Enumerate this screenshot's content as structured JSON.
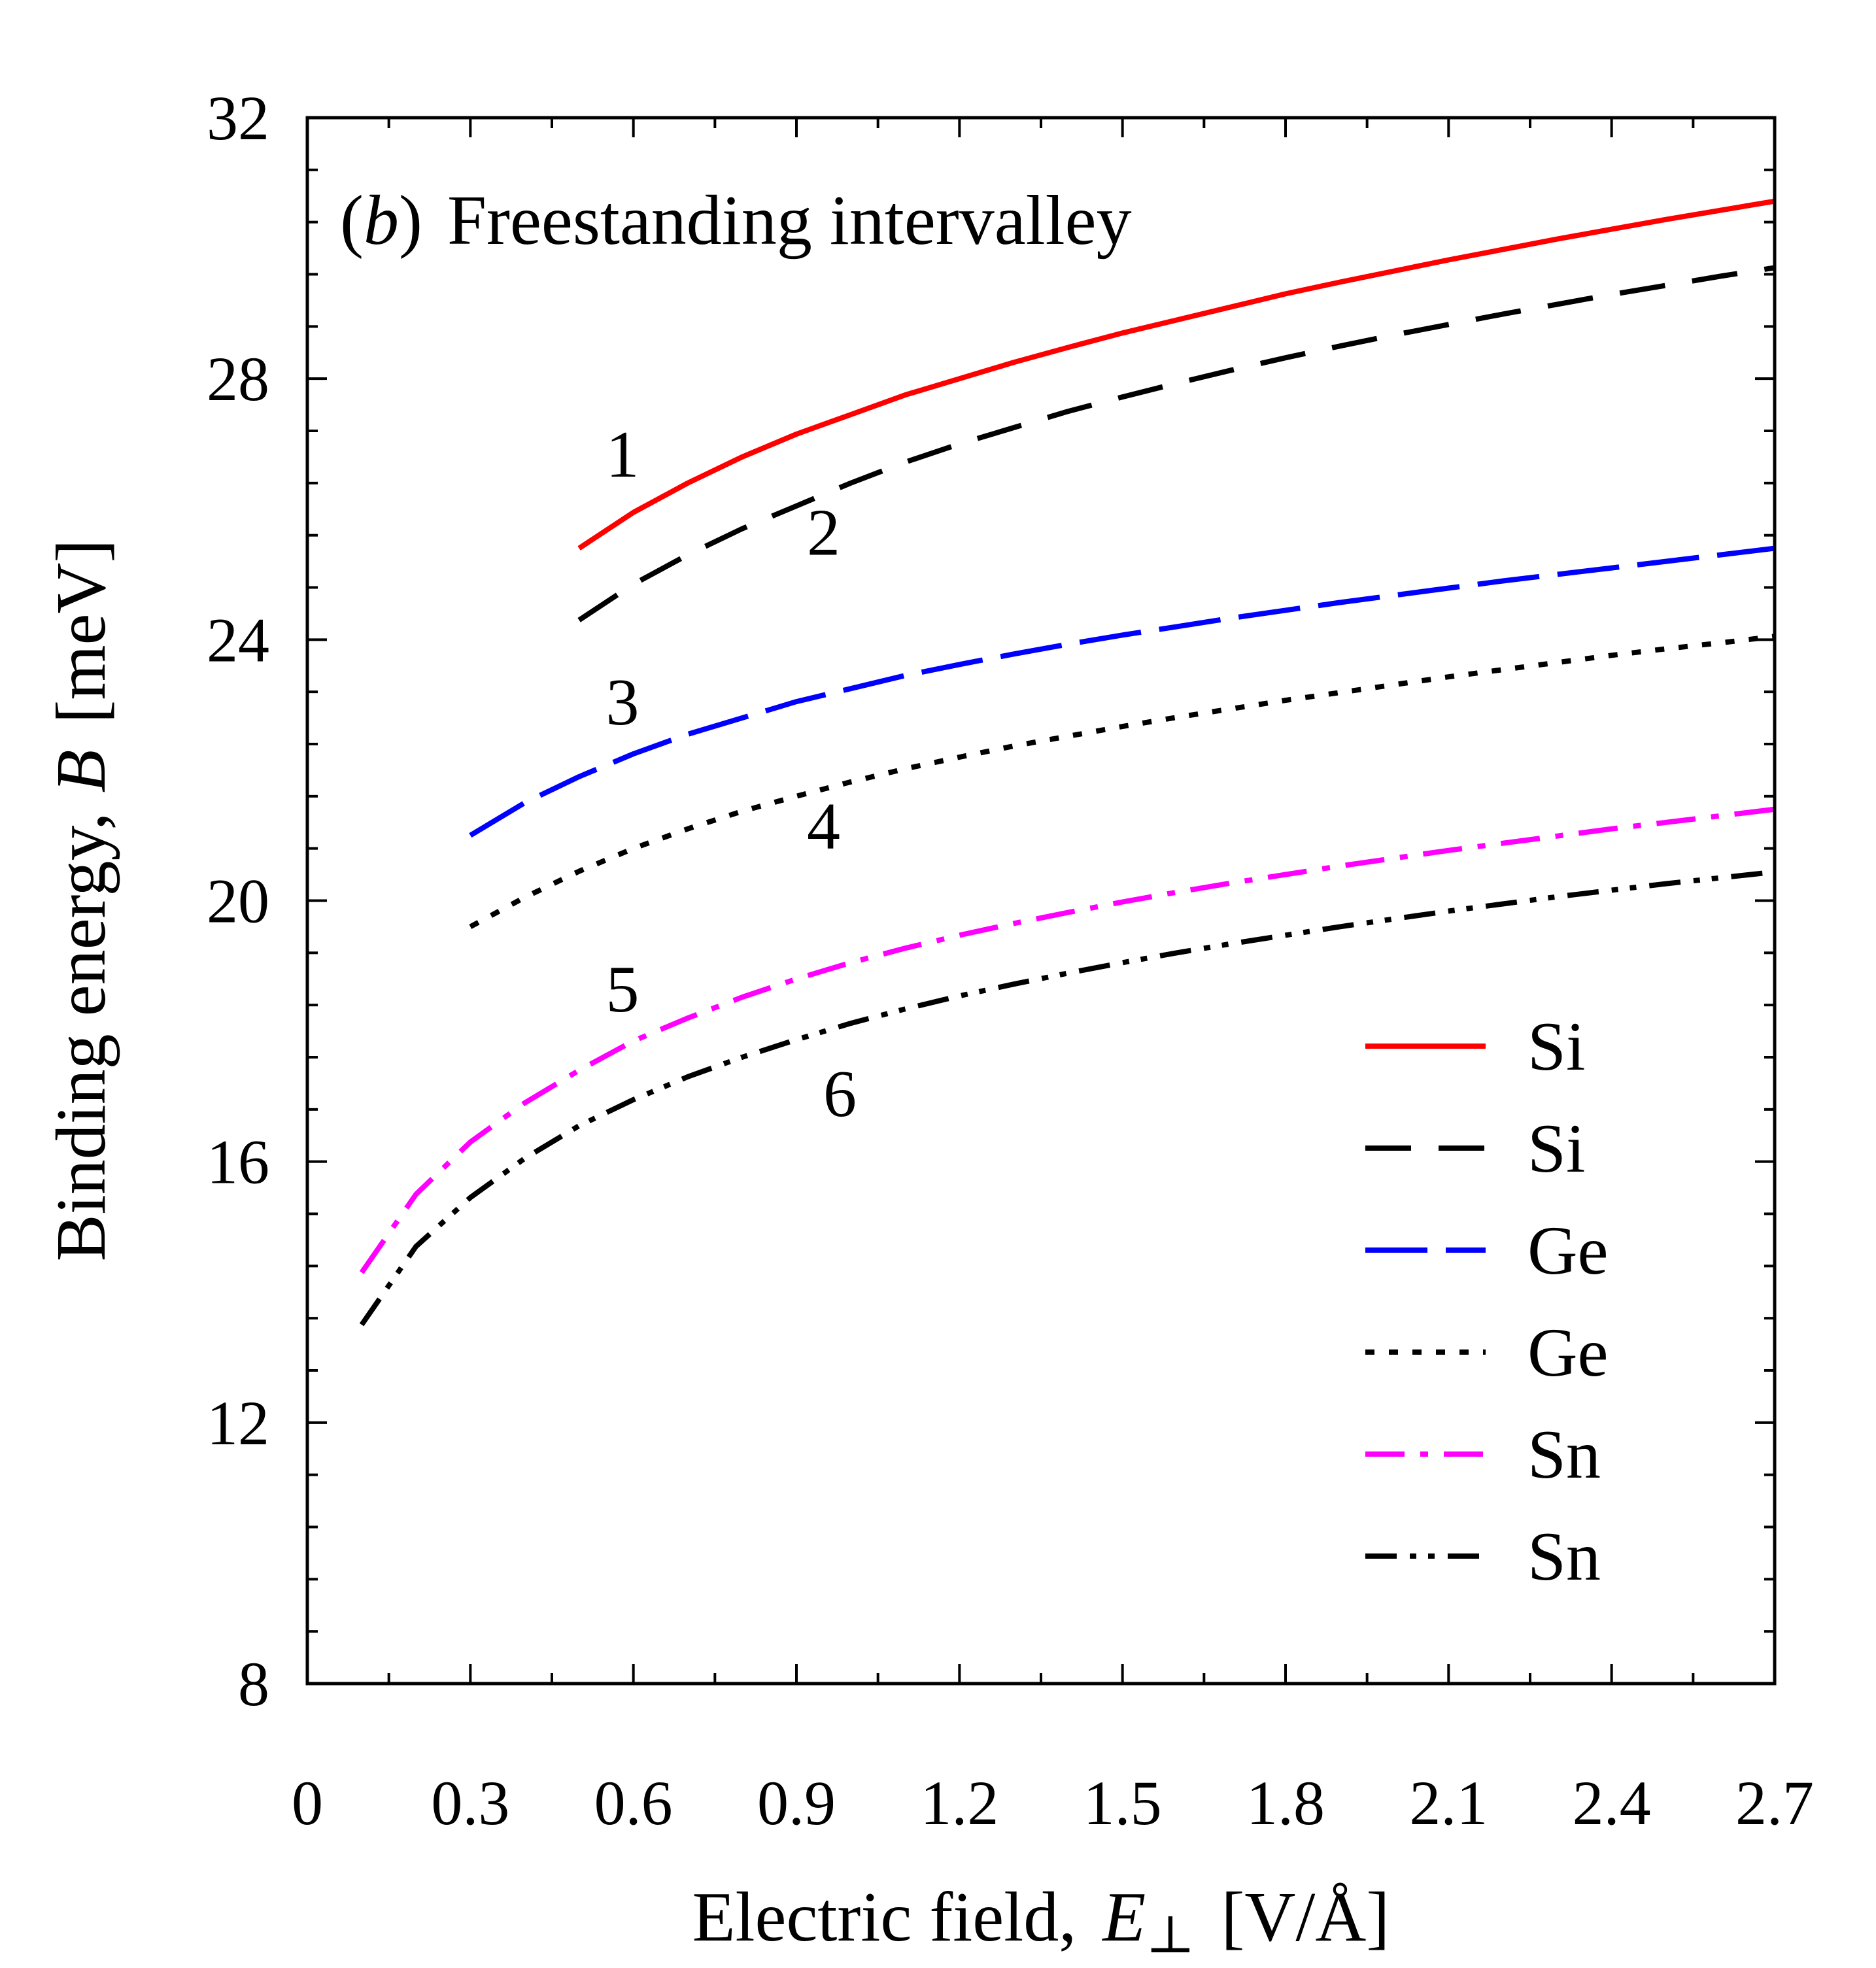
{
  "chart_data": {
    "type": "line",
    "panel": "b",
    "title": "Freestanding intervalley",
    "xlabel": "Electric field,",
    "xlabel_symbol": "E",
    "xlabel_subscript": "⊥",
    "xlabel_unit": "[V/Å]",
    "ylabel": "Binding energy,",
    "ylabel_symbol": "B",
    "ylabel_unit": "[meV]",
    "xlim": [
      0,
      2.7
    ],
    "ylim": [
      8,
      32
    ],
    "xticks": [
      0,
      0.3,
      0.6,
      0.9,
      1.2,
      1.5,
      1.8,
      2.1,
      2.4,
      2.7
    ],
    "xtick_labels": [
      "0",
      "0.3",
      "0.6",
      "0.9",
      "1.2",
      "1.5",
      "1.8",
      "2.1",
      "2.4",
      "2.7"
    ],
    "yticks": [
      8,
      12,
      16,
      20,
      24,
      28,
      32
    ],
    "ytick_labels": [
      "8",
      "12",
      "16",
      "20",
      "24",
      "28",
      "32"
    ],
    "legend_position": "bottom-right",
    "series": [
      {
        "name": "Si",
        "curve_label": "1",
        "color": "#ff0000",
        "style": "solid",
        "x": [
          0.5,
          0.6,
          0.7,
          0.8,
          0.9,
          1.0,
          1.1,
          1.2,
          1.3,
          1.4,
          1.5,
          1.6,
          1.7,
          1.8,
          1.9,
          2.0,
          2.1,
          2.2,
          2.3,
          2.4,
          2.5,
          2.6,
          2.7
        ],
        "y": [
          25.4,
          25.95,
          26.4,
          26.8,
          27.15,
          27.45,
          27.75,
          28.0,
          28.25,
          28.48,
          28.7,
          28.9,
          29.1,
          29.3,
          29.48,
          29.65,
          29.82,
          29.98,
          30.14,
          30.29,
          30.44,
          30.58,
          30.72
        ]
      },
      {
        "name": "Si",
        "curve_label": "2",
        "color": "#000000",
        "style": "dashed",
        "x": [
          0.5,
          0.6,
          0.7,
          0.8,
          0.9,
          1.0,
          1.1,
          1.2,
          1.3,
          1.4,
          1.5,
          1.6,
          1.7,
          1.8,
          1.9,
          2.0,
          2.1,
          2.2,
          2.3,
          2.4,
          2.5,
          2.6,
          2.7
        ],
        "y": [
          24.3,
          24.85,
          25.3,
          25.7,
          26.05,
          26.4,
          26.72,
          27.0,
          27.25,
          27.5,
          27.72,
          27.93,
          28.13,
          28.32,
          28.5,
          28.67,
          28.83,
          28.99,
          29.14,
          29.29,
          29.43,
          29.57,
          29.7
        ]
      },
      {
        "name": "Ge",
        "curve_label": "3",
        "color": "#0000ff",
        "style": "long-dash",
        "x": [
          0.3,
          0.4,
          0.5,
          0.6,
          0.7,
          0.8,
          0.9,
          1.0,
          1.1,
          1.2,
          1.3,
          1.4,
          1.5,
          1.6,
          1.7,
          1.8,
          1.9,
          2.0,
          2.1,
          2.2,
          2.3,
          2.4,
          2.5,
          2.6,
          2.7
        ],
        "y": [
          21.0,
          21.5,
          21.9,
          22.25,
          22.55,
          22.8,
          23.05,
          23.25,
          23.45,
          23.62,
          23.78,
          23.93,
          24.07,
          24.2,
          24.33,
          24.45,
          24.57,
          24.68,
          24.79,
          24.9,
          25.0,
          25.1,
          25.2,
          25.3,
          25.4
        ]
      },
      {
        "name": "Ge",
        "curve_label": "4",
        "color": "#000000",
        "style": "dotted",
        "x": [
          0.3,
          0.4,
          0.5,
          0.6,
          0.7,
          0.8,
          0.9,
          1.0,
          1.1,
          1.2,
          1.3,
          1.4,
          1.5,
          1.6,
          1.7,
          1.8,
          1.9,
          2.0,
          2.1,
          2.2,
          2.3,
          2.4,
          2.5,
          2.6,
          2.7
        ],
        "y": [
          19.6,
          20.05,
          20.45,
          20.8,
          21.1,
          21.37,
          21.6,
          21.82,
          22.02,
          22.2,
          22.37,
          22.52,
          22.67,
          22.81,
          22.94,
          23.07,
          23.19,
          23.31,
          23.43,
          23.54,
          23.65,
          23.76,
          23.86,
          23.95,
          24.05
        ]
      },
      {
        "name": "Sn",
        "curve_label": "5",
        "color": "#ff00ff",
        "style": "dash-dot",
        "x": [
          0.1,
          0.2,
          0.3,
          0.4,
          0.5,
          0.6,
          0.7,
          0.8,
          0.9,
          1.0,
          1.1,
          1.2,
          1.3,
          1.4,
          1.5,
          1.6,
          1.7,
          1.8,
          1.9,
          2.0,
          2.1,
          2.2,
          2.3,
          2.4,
          2.5,
          2.6,
          2.7
        ],
        "y": [
          14.3,
          15.5,
          16.3,
          16.9,
          17.4,
          17.85,
          18.2,
          18.52,
          18.8,
          19.05,
          19.27,
          19.47,
          19.65,
          19.82,
          19.98,
          20.13,
          20.27,
          20.4,
          20.53,
          20.65,
          20.77,
          20.88,
          20.99,
          21.1,
          21.2,
          21.3,
          21.4
        ]
      },
      {
        "name": "Sn",
        "curve_label": "6",
        "color": "#000000",
        "style": "dash-dot-dot",
        "x": [
          0.1,
          0.2,
          0.3,
          0.4,
          0.5,
          0.6,
          0.7,
          0.8,
          0.9,
          1.0,
          1.1,
          1.2,
          1.3,
          1.4,
          1.5,
          1.6,
          1.7,
          1.8,
          1.9,
          2.0,
          2.1,
          2.2,
          2.3,
          2.4,
          2.5,
          2.6,
          2.7
        ],
        "y": [
          13.5,
          14.7,
          15.45,
          16.05,
          16.55,
          16.95,
          17.3,
          17.6,
          17.87,
          18.12,
          18.34,
          18.54,
          18.72,
          18.89,
          19.05,
          19.2,
          19.34,
          19.47,
          19.6,
          19.72,
          19.84,
          19.95,
          20.06,
          20.16,
          20.26,
          20.35,
          20.44
        ]
      }
    ],
    "curve_label_anchors": [
      {
        "label": "1",
        "x": 0.58,
        "y": 26.5
      },
      {
        "label": "2",
        "x": 0.95,
        "y": 25.3
      },
      {
        "label": "3",
        "x": 0.58,
        "y": 22.7
      },
      {
        "label": "4",
        "x": 0.95,
        "y": 20.8
      },
      {
        "label": "5",
        "x": 0.58,
        "y": 18.3
      },
      {
        "label": "6",
        "x": 0.98,
        "y": 16.7
      }
    ]
  }
}
